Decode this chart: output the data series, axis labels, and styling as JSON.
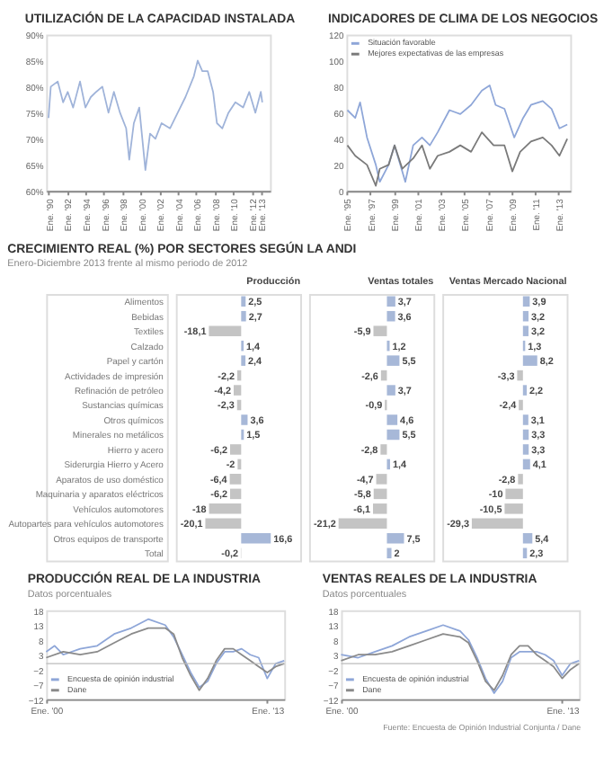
{
  "chart_data": [
    {
      "type": "line",
      "title": "UTILIZACIÓN DE LA CAPACIDAD INSTALADA",
      "series": [
        {
          "color": "#9fb3d9",
          "x": [
            "1990-01",
            "1990-04",
            "1991-01",
            "1991-08",
            "1992-02",
            "1992-09",
            "1993-06",
            "1994-01",
            "1994-08",
            "1995-03",
            "1995-11",
            "1996-07",
            "1997-02",
            "1997-10",
            "1998-06",
            "1998-10",
            "1999-04",
            "1999-11",
            "2000-07",
            "2001-01",
            "2001-08",
            "2002-04",
            "2003-03",
            "2004-01",
            "2004-11",
            "2005-10",
            "2006-03",
            "2006-09",
            "2007-04",
            "2007-11",
            "2008-04",
            "2008-11",
            "2009-07",
            "2010-04",
            "2011-02",
            "2011-10",
            "2012-06",
            "2013-01",
            "2013-03"
          ],
          "values": [
            74,
            80,
            81,
            77,
            79,
            76,
            81,
            76,
            78,
            79,
            80,
            75,
            79,
            75,
            72,
            66,
            73,
            76,
            64,
            71,
            70,
            73,
            72,
            75,
            78,
            82,
            85,
            83,
            83,
            79,
            73,
            72,
            75,
            77,
            76,
            79,
            75,
            79,
            77
          ]
        }
      ],
      "xlim": [
        "1989-10",
        "2014-01"
      ],
      "xticks": [
        {
          "value": "1990-01",
          "label": "Ene. '90"
        },
        {
          "value": "1992-01",
          "label": "Ene. '92"
        },
        {
          "value": "1994-01",
          "label": "Ene. '94"
        },
        {
          "value": "1996-01",
          "label": "Ene. '96"
        },
        {
          "value": "1998-01",
          "label": "Ene. '98"
        },
        {
          "value": "2000-01",
          "label": "Ene. '00"
        },
        {
          "value": "2002-01",
          "label": "Ene. '02"
        },
        {
          "value": "2004-01",
          "label": "Ene. '04"
        },
        {
          "value": "2006-01",
          "label": "Ene. '06"
        },
        {
          "value": "2008-01",
          "label": "Ene. '08"
        },
        {
          "value": "2010-01",
          "label": "Ene. '10"
        },
        {
          "value": "2012-01",
          "label": "Ene. '12"
        },
        {
          "value": "2013-01",
          "label": "Ene. '13"
        }
      ],
      "ylim": [
        60,
        90
      ],
      "yticks": [
        {
          "value": 60,
          "label": "60%"
        },
        {
          "value": 65,
          "label": "65%"
        },
        {
          "value": 70,
          "label": "70%"
        },
        {
          "value": 75,
          "label": "75%"
        },
        {
          "value": 80,
          "label": "80%"
        },
        {
          "value": 85,
          "label": "85%"
        },
        {
          "value": 90,
          "label": "90%"
        }
      ]
    },
    {
      "type": "line",
      "title": "INDICADORES DE CLIMA DE LOS NEGOCIOS",
      "legend": "top left",
      "series": [
        {
          "name": "Situación favorable",
          "color": "#8ea6d8",
          "x": [
            "1995-02",
            "1995-10",
            "1996-03",
            "1996-10",
            "1997-07",
            "1997-11",
            "1998-08",
            "1999-02",
            "1999-08",
            "2000-01",
            "2000-09",
            "2001-06",
            "2002-02",
            "2002-10",
            "2003-10",
            "2004-09",
            "2005-08",
            "2006-07",
            "2007-03",
            "2007-09",
            "2008-06",
            "2009-04",
            "2010-01",
            "2010-09",
            "2011-09",
            "2012-06",
            "2013-02",
            "2013-10"
          ],
          "values": [
            62,
            56,
            68,
            41,
            20,
            7,
            20,
            35,
            20,
            7,
            35,
            41,
            35,
            45,
            62,
            59,
            66,
            77,
            81,
            66,
            63,
            41,
            56,
            66,
            69,
            63,
            48,
            51
          ]
        },
        {
          "name": "Mejores expectativas de las empresas",
          "color": "#7a7a7a",
          "x": [
            "1995-02",
            "1995-10",
            "1996-10",
            "1997-07",
            "1997-11",
            "1998-08",
            "1999-02",
            "1999-10",
            "2000-09",
            "2001-06",
            "2002-02",
            "2002-10",
            "2003-10",
            "2004-09",
            "2005-08",
            "2006-07",
            "2007-07",
            "2008-06",
            "2009-02",
            "2009-10",
            "2010-09",
            "2011-09",
            "2012-06",
            "2013-02",
            "2013-10"
          ],
          "values": [
            35,
            27,
            20,
            4,
            17,
            20,
            35,
            17,
            25,
            35,
            17,
            27,
            30,
            35,
            30,
            45,
            35,
            35,
            15,
            30,
            38,
            41,
            35,
            27,
            40
          ]
        }
      ],
      "xlim": [
        "1995-01",
        "2014-01"
      ],
      "xticks": [
        {
          "value": "1995-01",
          "label": "Ene. '95"
        },
        {
          "value": "1997-01",
          "label": "Ene. '97"
        },
        {
          "value": "1999-01",
          "label": "Ene. '99"
        },
        {
          "value": "2001-01",
          "label": "Ene. '01"
        },
        {
          "value": "2003-01",
          "label": "Ene. '03"
        },
        {
          "value": "2005-01",
          "label": "Ene. '05"
        },
        {
          "value": "2007-01",
          "label": "Ene. '07"
        },
        {
          "value": "2009-01",
          "label": "Ene. '09"
        },
        {
          "value": "2011-01",
          "label": "Ene. '11"
        },
        {
          "value": "2013-01",
          "label": "Ene. '13"
        }
      ],
      "ylim": [
        0,
        120
      ],
      "yticks": [
        0,
        20,
        40,
        60,
        80,
        100,
        120
      ]
    },
    {
      "type": "bar",
      "orientation": "horizontal",
      "title": "CRECIMIENTO REAL (%) POR SECTORES SEGÚN LA ANDI",
      "subtitle": "Enero-Diciembre 2013 frente al mismo periodo de 2012",
      "xlabel": "Producción",
      "tick_labels": "y",
      "categories": [
        "Alimentos",
        "Bebidas",
        "Textiles",
        "Calzado",
        "Papel y cartón",
        "Actividades de impresión",
        "Refinación de petróleo",
        "Sustancias químicas",
        "Otros químicos",
        "Minerales no metálicos",
        "Hierro y acero",
        "Siderurgia Hierro y Acero",
        "Aparatos de uso doméstico",
        "Maquinaria y aparatos eléctricos",
        "Vehículos automotores",
        "Autopartes para vehículos automotores",
        "Otros equipos de transporte",
        "Total"
      ],
      "values": [
        2.5,
        2.7,
        -18.1,
        1.4,
        2.4,
        -2.2,
        -4.2,
        -2.3,
        3.6,
        1.5,
        -6.2,
        -2,
        -6.4,
        -6.2,
        -18,
        -20.1,
        16.6,
        -0.2
      ],
      "value_labels": [
        "2,5",
        "2,7",
        "-18,1",
        "1,4",
        "2,4",
        "-2,2",
        "-4,2",
        "-2,3",
        "3,6",
        "1,5",
        "-6,2",
        "-2",
        "-6,4",
        "-6,2",
        "-18",
        "-20,1",
        "16,6",
        "-0,2"
      ],
      "colors": [
        "#a7b8d8",
        "#a7b8d8",
        "#c4c4c4",
        "#a7b8d8",
        "#a7b8d8",
        "#c4c4c4",
        "#c4c4c4",
        "#c4c4c4",
        "#a7b8d8",
        "#a7b8d8",
        "#c4c4c4",
        "#c4c4c4",
        "#c4c4c4",
        "#c4c4c4",
        "#c4c4c4",
        "#c4c4c4",
        "#a7b8d8",
        "#c4c4c4"
      ]
    },
    {
      "type": "bar",
      "orientation": "horizontal",
      "xlabel": "Ventas totales",
      "tick_labels": false,
      "categories": [
        null,
        null,
        null,
        null,
        null,
        null,
        null,
        null,
        null,
        null,
        null,
        null,
        null,
        null,
        null,
        null,
        null,
        null
      ],
      "values": [
        3.7,
        3.6,
        -5.9,
        1.2,
        5.5,
        -2.6,
        3.7,
        -0.9,
        4.6,
        5.5,
        -2.8,
        1.4,
        -4.7,
        -5.8,
        -6.1,
        -21.2,
        7.5,
        2
      ],
      "value_labels": [
        "3,7",
        "3,6",
        "-5,9",
        "1,2",
        "5,5",
        "-2,6",
        "3,7",
        "-0,9",
        "4,6",
        "5,5",
        "-2,8",
        "1,4",
        "-4,7",
        "-5,8",
        "-6,1",
        "-21,2",
        "7,5",
        "2"
      ],
      "colors": [
        "#a7b8d8",
        "#a7b8d8",
        "#c4c4c4",
        "#a7b8d8",
        "#a7b8d8",
        "#c4c4c4",
        "#a7b8d8",
        "#c4c4c4",
        "#a7b8d8",
        "#a7b8d8",
        "#c4c4c4",
        "#a7b8d8",
        "#c4c4c4",
        "#c4c4c4",
        "#c4c4c4",
        "#c4c4c4",
        "#a7b8d8",
        "#a7b8d8"
      ]
    },
    {
      "type": "bar",
      "orientation": "horizontal",
      "xlabel": "Ventas Mercado Nacional",
      "tick_labels": false,
      "categories": [
        null,
        null,
        null,
        null,
        null,
        null,
        null,
        null,
        null,
        null,
        null,
        null,
        null,
        null,
        null,
        null,
        null,
        null
      ],
      "values": [
        3.9,
        3.2,
        3.2,
        1.3,
        8.2,
        -3.3,
        2.2,
        -2.4,
        3.1,
        3.3,
        3.3,
        4.1,
        -2.8,
        -10,
        -10.5,
        -29.3,
        5.4,
        2.3
      ],
      "value_labels": [
        "3,9",
        "3,2",
        "3,2",
        "1,3",
        "8,2",
        "-3,3",
        "2,2",
        "-2,4",
        "3,1",
        "3,3",
        "3,3",
        "4,1",
        "-2,8",
        "-10",
        "-10,5",
        "-29,3",
        "5,4",
        "2,3"
      ],
      "colors": [
        "#a7b8d8",
        "#a7b8d8",
        "#a7b8d8",
        "#a7b8d8",
        "#a7b8d8",
        "#c4c4c4",
        "#a7b8d8",
        "#c4c4c4",
        "#a7b8d8",
        "#a7b8d8",
        "#a7b8d8",
        "#a7b8d8",
        "#c4c4c4",
        "#c4c4c4",
        "#c4c4c4",
        "#c4c4c4",
        "#a7b8d8",
        "#a7b8d8"
      ]
    },
    {
      "type": "line",
      "title": "PRODUCCIÓN REAL DE LA INDUSTRIA",
      "subtitle": "Datos porcentuales",
      "legend": "bottom left",
      "series": [
        {
          "name": "Encuesta de opinión industrial",
          "color": "#8ea6d8",
          "x": [
            "2000-01",
            "2000-07",
            "2001-01",
            "2002-01",
            "2003-01",
            "2004-01",
            "2005-01",
            "2006-01",
            "2007-01",
            "2007-07",
            "2008-01",
            "2008-07",
            "2009-01",
            "2009-07",
            "2010-01",
            "2010-07",
            "2011-01",
            "2011-07",
            "2012-01",
            "2012-07",
            "2013-01",
            "2013-07",
            "2014-01"
          ],
          "values": [
            4,
            6,
            3,
            5,
            6,
            10,
            12,
            15,
            13,
            9,
            3,
            -3,
            -8,
            -6,
            0,
            4,
            4,
            5,
            3,
            2,
            -5,
            0,
            1
          ]
        },
        {
          "name": "Dane",
          "color": "#8a8a8a",
          "x": [
            "2000-01",
            "2001-01",
            "2002-01",
            "2003-01",
            "2004-01",
            "2005-01",
            "2006-01",
            "2007-01",
            "2007-07",
            "2008-01",
            "2008-07",
            "2009-01",
            "2009-07",
            "2010-01",
            "2010-07",
            "2011-01",
            "2011-07",
            "2012-01",
            "2012-07",
            "2013-01",
            "2013-07",
            "2014-01"
          ],
          "values": [
            2,
            4,
            3,
            4,
            7,
            10,
            12,
            12,
            10,
            2,
            -4,
            -9,
            -5,
            1,
            5,
            5,
            3,
            1,
            -1,
            -3,
            -1,
            0
          ]
        }
      ],
      "xlim": [
        "2000-01",
        "2014-01"
      ],
      "xticks": [
        {
          "value": "2000-01",
          "label": "Ene. '00"
        },
        {
          "value": "2013-01",
          "label": "Ene. '13"
        }
      ],
      "ylim": [
        -12,
        18
      ],
      "yticks": [
        -12,
        -7,
        -2,
        3,
        8,
        13,
        18
      ],
      "ref_lines": [
        {
          "axis": "y",
          "value": 0,
          "color": "#bbbbbb"
        }
      ]
    },
    {
      "type": "line",
      "title": "VENTAS REALES DE LA INDUSTRIA",
      "subtitle": "Datos porcentuales",
      "legend": "bottom left",
      "series": [
        {
          "name": "Encuesta de opinión industrial",
          "color": "#8ea6d8",
          "x": [
            "2000-01",
            "2001-01",
            "2002-01",
            "2003-01",
            "2004-01",
            "2005-01",
            "2006-01",
            "2007-01",
            "2007-07",
            "2008-01",
            "2008-07",
            "2009-01",
            "2009-07",
            "2010-01",
            "2010-07",
            "2011-01",
            "2011-07",
            "2012-01",
            "2012-07",
            "2013-01",
            "2013-07",
            "2014-01"
          ],
          "values": [
            3,
            2,
            4,
            6,
            9,
            11,
            13,
            11,
            8,
            2,
            -5,
            -10,
            -6,
            2,
            4,
            4,
            4,
            3,
            1,
            -4,
            0,
            1
          ]
        },
        {
          "name": "Dane",
          "color": "#8a8a8a",
          "x": [
            "2000-01",
            "2001-01",
            "2002-01",
            "2003-01",
            "2004-01",
            "2005-01",
            "2006-01",
            "2007-01",
            "2007-07",
            "2008-01",
            "2008-07",
            "2009-01",
            "2009-07",
            "2010-01",
            "2010-07",
            "2011-01",
            "2011-07",
            "2012-01",
            "2012-07",
            "2013-01",
            "2013-07",
            "2014-01"
          ],
          "values": [
            1,
            3,
            3,
            4,
            6,
            8,
            10,
            9,
            7,
            1,
            -6,
            -9,
            -4,
            3,
            6,
            6,
            3,
            1,
            -1,
            -5,
            -2,
            0
          ]
        }
      ],
      "xlim": [
        "2000-01",
        "2014-01"
      ],
      "xticks": [
        {
          "value": "2000-01",
          "label": "Ene. '00"
        },
        {
          "value": "2013-01",
          "label": "Ene. '13"
        }
      ],
      "ylim": [
        -12,
        18
      ],
      "yticks": [
        -12,
        -7,
        -2,
        3,
        8,
        13,
        18
      ],
      "ref_lines": [
        {
          "axis": "y",
          "value": 0,
          "color": "#bbbbbb"
        }
      ],
      "annotations": [
        "Fuente: Encuesta de Opinión Industrial Conjunta / Dane"
      ]
    }
  ]
}
